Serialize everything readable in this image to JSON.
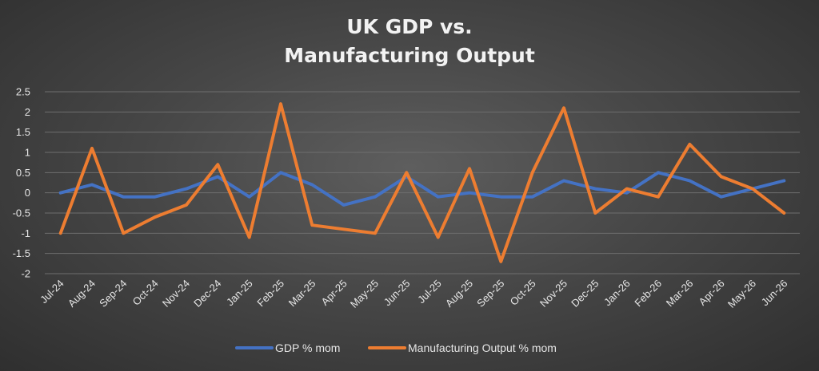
{
  "chart_data": {
    "type": "line",
    "title_line1": "UK GDP vs.",
    "title_line2": "Manufacturing Output",
    "xlabel": "",
    "ylabel": "",
    "ylim": [
      -2,
      2.5
    ],
    "yticks": [
      "2.5",
      "2",
      "1.5",
      "1",
      "0.5",
      "0",
      "-0.5",
      "-1",
      "-1.5",
      "-2"
    ],
    "ytick_values": [
      2.5,
      2,
      1.5,
      1,
      0.5,
      0,
      -0.5,
      -1,
      -1.5,
      -2
    ],
    "grid": true,
    "legend_position": "bottom",
    "categories": [
      "Jul-24",
      "Aug-24",
      "Sep-24",
      "Oct-24",
      "Nov-24",
      "Dec-24",
      "Jan-25",
      "Feb-25",
      "Mar-25",
      "Apr-25",
      "May-25",
      "Jun-25",
      "Jul-25",
      "Aug-25",
      "Sep-25",
      "Oct-25",
      "Nov-25",
      "Dec-25",
      "Jan-26",
      "Feb-26",
      "Mar-26",
      "Apr-26",
      "May-26",
      "Jun-26"
    ],
    "series": [
      {
        "name": "GDP % mom",
        "color": "#4472c4",
        "values": [
          0,
          0.2,
          -0.1,
          -0.1,
          0.1,
          0.4,
          -0.1,
          0.5,
          0.2,
          -0.3,
          -0.1,
          0.4,
          -0.1,
          0,
          -0.1,
          -0.1,
          0.3,
          0.1,
          0,
          0.5,
          0.3,
          -0.1,
          0.1,
          0.3
        ]
      },
      {
        "name": "Manufacturing Output % mom",
        "color": "#ed7d31",
        "values": [
          -1,
          1.1,
          -1,
          -0.6,
          -0.3,
          0.7,
          -1.1,
          2.2,
          -0.8,
          -0.9,
          -1,
          0.5,
          -1.1,
          0.6,
          -1.7,
          0.5,
          2.1,
          -0.5,
          0.1,
          -0.1,
          1.2,
          0.4,
          0.1,
          -0.5
        ]
      }
    ]
  }
}
